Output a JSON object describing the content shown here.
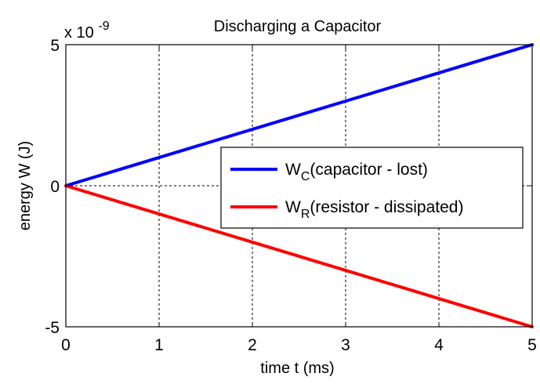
{
  "chart_data": {
    "type": "line",
    "title": "Discharging a Capacitor",
    "xlabel": "time  t   (ms)",
    "ylabel": "energy  W   (J)",
    "y_exponent": "x 10",
    "y_exponent_power": "-9",
    "xlim": [
      0,
      5
    ],
    "ylim": [
      -5,
      5
    ],
    "xticks": [
      0,
      1,
      2,
      3,
      4,
      5
    ],
    "yticks": [
      -5,
      0,
      5
    ],
    "x_tick_labels": [
      "0",
      "1",
      "2",
      "3",
      "4",
      "5"
    ],
    "y_tick_labels": [
      "-5",
      "0",
      "5"
    ],
    "grid": true,
    "legend_position": "center-right",
    "series": [
      {
        "name": "W_C(capacitor - lost)",
        "legend_main": "W",
        "legend_sub": "C",
        "legend_rest": "(capacitor - lost)",
        "color": "#0000ff",
        "x": [
          0,
          5
        ],
        "y": [
          0,
          5
        ]
      },
      {
        "name": "W_R(resistor - dissipated)",
        "legend_main": "W",
        "legend_sub": "R",
        "legend_rest": "(resistor - dissipated)",
        "color": "#ff0000",
        "x": [
          0,
          5
        ],
        "y": [
          0,
          -5
        ]
      }
    ]
  }
}
